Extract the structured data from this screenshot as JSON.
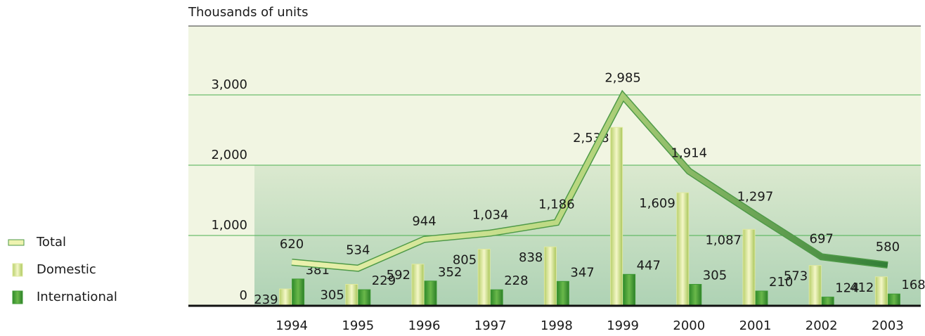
{
  "chart_data": {
    "type": "bar",
    "ylabel": "Thousands of units",
    "categories": [
      "1994",
      "1995",
      "1996",
      "1997",
      "1998",
      "1999",
      "2000",
      "2001",
      "2002",
      "2003"
    ],
    "series": [
      {
        "name": "Total",
        "type": "line",
        "color": "#4f9a48",
        "values": [
          620,
          534,
          944,
          1034,
          1186,
          2985,
          1914,
          1297,
          697,
          580
        ],
        "value_labels": [
          "620",
          "534",
          "944",
          "1,034",
          "1,186",
          "2,985",
          "1,914",
          "1,297",
          "697",
          "580"
        ]
      },
      {
        "name": "Domestic",
        "type": "bar",
        "color": "#dfe9a0",
        "values": [
          239,
          305,
          592,
          805,
          838,
          2538,
          1609,
          1087,
          573,
          412
        ],
        "value_labels": [
          "239",
          "305",
          "592",
          "805",
          "838",
          "2,538",
          "1,609",
          "1,087",
          "573",
          "412"
        ]
      },
      {
        "name": "International",
        "type": "bar",
        "color": "#3f9a35",
        "values": [
          381,
          229,
          352,
          228,
          347,
          447,
          305,
          210,
          124,
          168
        ]
      }
    ],
    "ylim": [
      0,
      4000
    ],
    "yticks": [
      0,
      {
        "value": 1000,
        "label": "1,000"
      },
      {
        "value": 2000,
        "label": "2,000"
      },
      {
        "value": 3000,
        "label": "3,000"
      }
    ],
    "grid": true,
    "legend": "left"
  }
}
